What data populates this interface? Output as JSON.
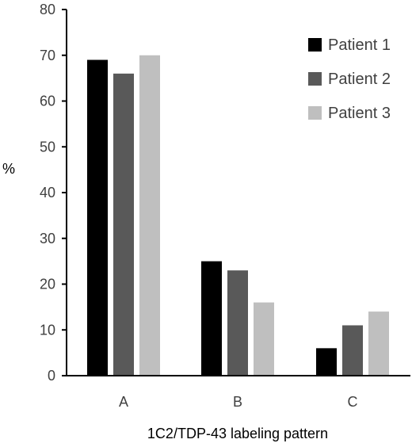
{
  "chart_data": {
    "type": "bar",
    "title": "",
    "xlabel": "1C2/TDP-43 labeling pattern",
    "ylabel": "%",
    "ylim": [
      0,
      80
    ],
    "yticks": [
      0,
      10,
      20,
      30,
      40,
      50,
      60,
      70,
      80
    ],
    "grid": false,
    "legend_position": "top-right",
    "categories": [
      "A",
      "B",
      "C"
    ],
    "series": [
      {
        "name": "Patient 1",
        "color": "#000000",
        "values": [
          69,
          25,
          6
        ]
      },
      {
        "name": "Patient 2",
        "color": "#595959",
        "values": [
          66,
          23,
          11
        ]
      },
      {
        "name": "Patient 3",
        "color": "#bfbfbf",
        "values": [
          70,
          16,
          14
        ]
      }
    ]
  }
}
